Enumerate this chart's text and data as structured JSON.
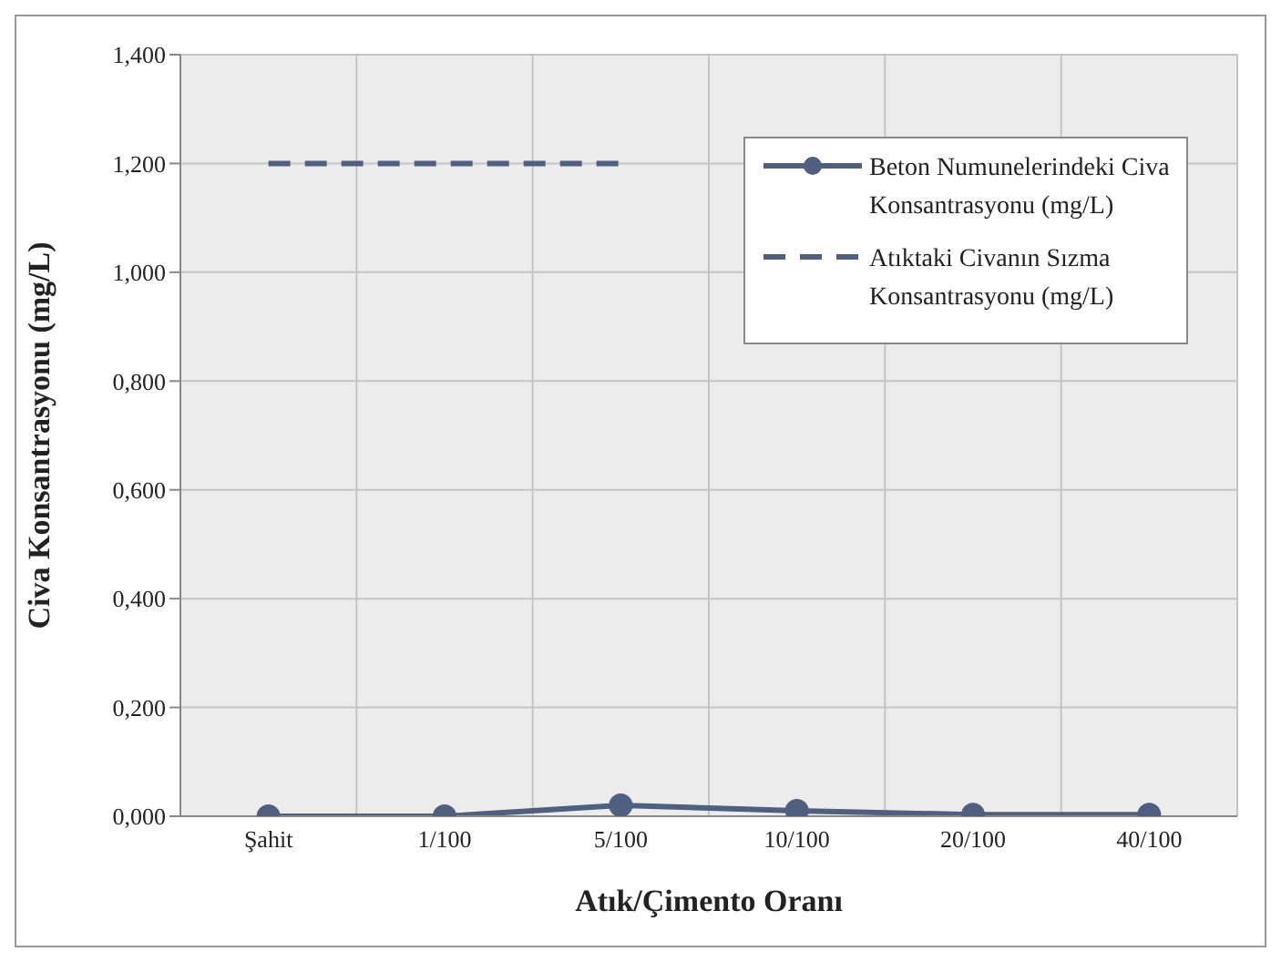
{
  "chart_data": {
    "type": "line",
    "xlabel": "Atık/Çimento Oranı",
    "ylabel": "Civa Konsantrasyonu (mg/L)",
    "categories": [
      "Şahit",
      "1/100",
      "5/100",
      "10/100",
      "20/100",
      "40/100"
    ],
    "series": [
      {
        "name": "Beton Numunelerindeki Civa Konsantrasyonu (mg/L)",
        "color": "#4f5f7f",
        "values": [
          0,
          0,
          0.02,
          0.01,
          0.003,
          0.003
        ],
        "marker": "circle",
        "line_style": "solid"
      },
      {
        "name": "Atıktaki Civanın Sızma Konsantrasyonu (mg/L)",
        "color": "#4f5f7f",
        "values": [
          1.2,
          1.2,
          1.2,
          null,
          null,
          null
        ],
        "marker": "none",
        "line_style": "dashed"
      }
    ],
    "ylim": [
      0,
      1.4
    ],
    "yticks": [
      {
        "value": 0,
        "label": "0,000"
      },
      {
        "value": 0.2,
        "label": "0,200"
      },
      {
        "value": 0.4,
        "label": "0,400"
      },
      {
        "value": 0.6,
        "label": "0,600"
      },
      {
        "value": 0.8,
        "label": "0,800"
      },
      {
        "value": 1,
        "label": "1,000"
      },
      {
        "value": 1.2,
        "label": "1,200"
      },
      {
        "value": 1.4,
        "label": "1,400"
      }
    ],
    "grid": true,
    "legend": "top right"
  }
}
